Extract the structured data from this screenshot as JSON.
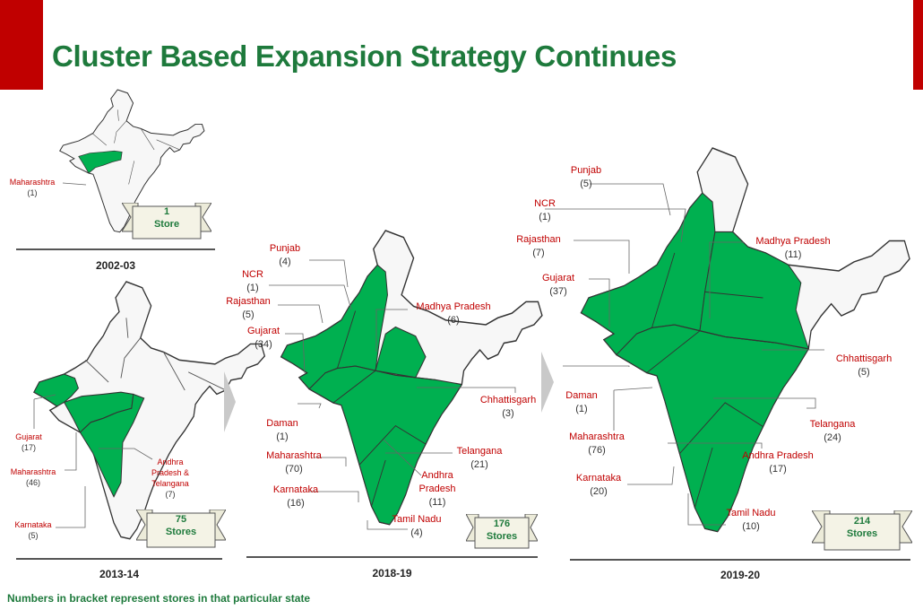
{
  "title": "Cluster Based Expansion Strategy Continues",
  "footnote": "Numbers in bracket represent stores in that particular state",
  "colors": {
    "accent": "#c00000",
    "title": "#1e7a3c",
    "map_fill": "#00b050",
    "state_label": "#c00000",
    "count": "#333333",
    "badge_bg": "#ecebd9"
  },
  "panels": [
    {
      "period": "2002-03",
      "stores_count": "1",
      "stores_label": "Store",
      "states": [
        {
          "name": "Maharashtra",
          "count": "(1)"
        }
      ]
    },
    {
      "period": "2013-14",
      "stores_count": "75",
      "stores_label": "Stores",
      "states": [
        {
          "name": "Gujarat",
          "count": "(17)"
        },
        {
          "name": "Maharashtra",
          "count": "(46)"
        },
        {
          "name": "Karnataka",
          "count": "(5)"
        },
        {
          "name": "Andhra Pradesh & Telangana",
          "name_lines": [
            "Andhra",
            "Pradesh &",
            "Telangana"
          ],
          "count": "(7)"
        }
      ]
    },
    {
      "period": "2018-19",
      "stores_count": "176",
      "stores_label": "Stores",
      "states": [
        {
          "name": "Punjab",
          "count": "(4)"
        },
        {
          "name": "NCR",
          "count": "(1)"
        },
        {
          "name": "Rajasthan",
          "count": "(5)"
        },
        {
          "name": "Gujarat",
          "count": "(34)"
        },
        {
          "name": "Madhya Pradesh",
          "count": "(6)"
        },
        {
          "name": "Chhattisgarh",
          "count": "(3)"
        },
        {
          "name": "Daman",
          "count": "(1)"
        },
        {
          "name": "Maharashtra",
          "count": "(70)"
        },
        {
          "name": "Telangana",
          "count": "(21)"
        },
        {
          "name": "Karnataka",
          "count": "(16)"
        },
        {
          "name": "Andhra Pradesh",
          "name_lines": [
            "Andhra",
            "Pradesh"
          ],
          "count": "(11)"
        },
        {
          "name": "Tamil Nadu",
          "count": "(4)"
        }
      ]
    },
    {
      "period": "2019-20",
      "stores_count": "214",
      "stores_label": "Stores",
      "states": [
        {
          "name": "Punjab",
          "count": "(5)"
        },
        {
          "name": "NCR",
          "count": "(1)"
        },
        {
          "name": "Rajasthan",
          "count": "(7)"
        },
        {
          "name": "Gujarat",
          "count": "(37)"
        },
        {
          "name": "Madhya Pradesh",
          "count": "(11)"
        },
        {
          "name": "Chhattisgarh",
          "count": "(5)"
        },
        {
          "name": "Daman",
          "count": "(1)"
        },
        {
          "name": "Telangana",
          "count": "(24)"
        },
        {
          "name": "Maharashtra",
          "count": "(76)"
        },
        {
          "name": "Andhra Pradesh",
          "count": "(17)"
        },
        {
          "name": "Karnataka",
          "count": "(20)"
        },
        {
          "name": "Tamil Nadu",
          "count": "(10)"
        }
      ]
    }
  ]
}
